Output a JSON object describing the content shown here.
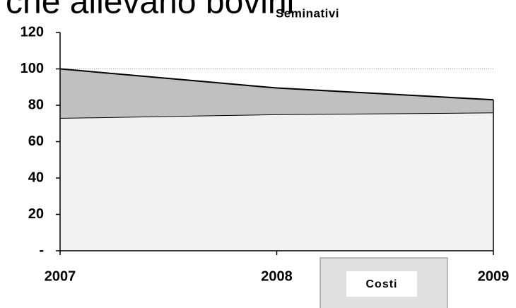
{
  "heading": "che allevano bovini",
  "chart_data": {
    "type": "stacked_area",
    "title": "Seminativi",
    "categories": [
      "2007",
      "2008",
      "2009"
    ],
    "series": [
      {
        "color": "#f2f2f2",
        "values": [
          73,
          75,
          76
        ]
      },
      {
        "color": "#c0c0c0",
        "values": [
          27,
          14.5,
          7
        ]
      }
    ],
    "ylim": [
      0,
      120
    ],
    "yticks": [
      {
        "value": 0,
        "label": "-"
      },
      20,
      40,
      60,
      80,
      100,
      120
    ],
    "grid": true,
    "legend": [
      "Costi"
    ]
  }
}
